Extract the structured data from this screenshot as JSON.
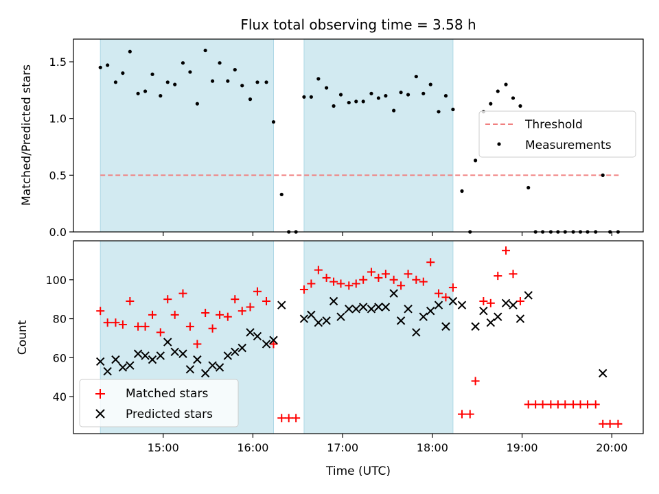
{
  "title": "Flux total observing time = 3.58 h",
  "colors": {
    "threshold": "#f08080",
    "shade": "#add8e6",
    "matched": "#ff0000",
    "predicted": "#000000",
    "measure": "#000000"
  },
  "chart_data": [
    {
      "type": "scatter",
      "ylabel": "Matched/Predicted stars",
      "ylim": [
        0,
        1.7
      ],
      "yticks": [
        "0.0",
        "0.5",
        "1.0",
        "1.5"
      ],
      "xlim": [
        14.0,
        20.35
      ],
      "legend": {
        "placement": "center-right",
        "entries": [
          "Threshold",
          "Measurements"
        ]
      },
      "threshold": {
        "name": "Threshold",
        "value": 0.5,
        "x_start": 14.3,
        "x_end": 20.08
      },
      "shaded_spans": [
        [
          14.3,
          16.23
        ],
        [
          16.57,
          18.23
        ]
      ],
      "series": [
        {
          "name": "Measurements",
          "points": [
            [
              14.3,
              1.45
            ],
            [
              14.38,
              1.47
            ],
            [
              14.47,
              1.32
            ],
            [
              14.55,
              1.4
            ],
            [
              14.63,
              1.59
            ],
            [
              14.72,
              1.22
            ],
            [
              14.8,
              1.24
            ],
            [
              14.88,
              1.39
            ],
            [
              14.97,
              1.2
            ],
            [
              15.05,
              1.32
            ],
            [
              15.13,
              1.3
            ],
            [
              15.22,
              1.49
            ],
            [
              15.3,
              1.41
            ],
            [
              15.38,
              1.13
            ],
            [
              15.47,
              1.6
            ],
            [
              15.55,
              1.33
            ],
            [
              15.63,
              1.49
            ],
            [
              15.72,
              1.33
            ],
            [
              15.8,
              1.43
            ],
            [
              15.88,
              1.29
            ],
            [
              15.97,
              1.17
            ],
            [
              16.05,
              1.32
            ],
            [
              16.15,
              1.32
            ],
            [
              16.23,
              0.97
            ],
            [
              16.32,
              0.33
            ],
            [
              16.4,
              0.0
            ],
            [
              16.48,
              0.0
            ],
            [
              16.57,
              1.19
            ],
            [
              16.65,
              1.19
            ],
            [
              16.73,
              1.35
            ],
            [
              16.82,
              1.27
            ],
            [
              16.9,
              1.11
            ],
            [
              16.98,
              1.21
            ],
            [
              17.07,
              1.14
            ],
            [
              17.15,
              1.15
            ],
            [
              17.23,
              1.15
            ],
            [
              17.32,
              1.22
            ],
            [
              17.4,
              1.18
            ],
            [
              17.48,
              1.2
            ],
            [
              17.57,
              1.07
            ],
            [
              17.65,
              1.23
            ],
            [
              17.73,
              1.21
            ],
            [
              17.82,
              1.37
            ],
            [
              17.9,
              1.22
            ],
            [
              17.98,
              1.3
            ],
            [
              18.07,
              1.06
            ],
            [
              18.15,
              1.2
            ],
            [
              18.23,
              1.08
            ],
            [
              18.33,
              0.36
            ],
            [
              18.42,
              0.0
            ],
            [
              18.48,
              0.63
            ],
            [
              18.57,
              1.06
            ],
            [
              18.65,
              1.13
            ],
            [
              18.73,
              1.24
            ],
            [
              18.82,
              1.3
            ],
            [
              18.9,
              1.18
            ],
            [
              18.98,
              1.11
            ],
            [
              19.07,
              0.39
            ],
            [
              19.15,
              0.0
            ],
            [
              19.23,
              0.0
            ],
            [
              19.32,
              0.0
            ],
            [
              19.4,
              0.0
            ],
            [
              19.48,
              0.0
            ],
            [
              19.57,
              0.0
            ],
            [
              19.65,
              0.0
            ],
            [
              19.73,
              0.0
            ],
            [
              19.82,
              0.0
            ],
            [
              19.9,
              0.5
            ],
            [
              19.98,
              0.0
            ],
            [
              20.07,
              0.0
            ]
          ]
        }
      ]
    },
    {
      "type": "scatter",
      "xlabel": "Time (UTC)",
      "ylabel": "Count",
      "ylim": [
        21,
        120
      ],
      "yticks": [
        "40",
        "60",
        "80",
        "100"
      ],
      "xlim": [
        14.0,
        20.35
      ],
      "xticks": [
        "15:00",
        "16:00",
        "17:00",
        "18:00",
        "19:00",
        "20:00"
      ],
      "legend": {
        "placement": "bottom-left",
        "entries": [
          "Matched stars",
          "Predicted stars"
        ]
      },
      "shaded_spans": [
        [
          14.3,
          16.23
        ],
        [
          16.57,
          18.23
        ]
      ],
      "series": [
        {
          "name": "Matched stars",
          "points": [
            [
              14.3,
              84
            ],
            [
              14.38,
              78
            ],
            [
              14.47,
              78
            ],
            [
              14.55,
              77
            ],
            [
              14.63,
              89
            ],
            [
              14.72,
              76
            ],
            [
              14.8,
              76
            ],
            [
              14.88,
              82
            ],
            [
              14.97,
              73
            ],
            [
              15.05,
              90
            ],
            [
              15.13,
              82
            ],
            [
              15.22,
              93
            ],
            [
              15.3,
              76
            ],
            [
              15.38,
              67
            ],
            [
              15.47,
              83
            ],
            [
              15.55,
              75
            ],
            [
              15.63,
              82
            ],
            [
              15.72,
              81
            ],
            [
              15.8,
              90
            ],
            [
              15.88,
              84
            ],
            [
              15.97,
              86
            ],
            [
              16.05,
              94
            ],
            [
              16.15,
              89
            ],
            [
              16.23,
              67
            ],
            [
              16.32,
              29
            ],
            [
              16.4,
              29
            ],
            [
              16.48,
              29
            ],
            [
              16.57,
              95
            ],
            [
              16.65,
              98
            ],
            [
              16.73,
              105
            ],
            [
              16.82,
              101
            ],
            [
              16.9,
              99
            ],
            [
              16.98,
              98
            ],
            [
              17.07,
              97
            ],
            [
              17.15,
              98
            ],
            [
              17.23,
              100
            ],
            [
              17.32,
              104
            ],
            [
              17.4,
              101
            ],
            [
              17.48,
              103
            ],
            [
              17.57,
              100
            ],
            [
              17.65,
              97
            ],
            [
              17.73,
              103
            ],
            [
              17.82,
              100
            ],
            [
              17.9,
              99
            ],
            [
              17.98,
              109
            ],
            [
              18.07,
              93
            ],
            [
              18.15,
              91
            ],
            [
              18.23,
              96
            ],
            [
              18.33,
              31
            ],
            [
              18.42,
              31
            ],
            [
              18.48,
              48
            ],
            [
              18.57,
              89
            ],
            [
              18.65,
              88
            ],
            [
              18.73,
              102
            ],
            [
              18.82,
              115
            ],
            [
              18.9,
              103
            ],
            [
              18.98,
              89
            ],
            [
              19.07,
              36
            ],
            [
              19.15,
              36
            ],
            [
              19.23,
              36
            ],
            [
              19.32,
              36
            ],
            [
              19.4,
              36
            ],
            [
              19.48,
              36
            ],
            [
              19.57,
              36
            ],
            [
              19.65,
              36
            ],
            [
              19.73,
              36
            ],
            [
              19.82,
              36
            ],
            [
              19.9,
              26
            ],
            [
              19.98,
              26
            ],
            [
              20.07,
              26
            ]
          ]
        },
        {
          "name": "Predicted stars",
          "points": [
            [
              14.3,
              58
            ],
            [
              14.38,
              53
            ],
            [
              14.47,
              59
            ],
            [
              14.55,
              55
            ],
            [
              14.63,
              56
            ],
            [
              14.72,
              62
            ],
            [
              14.8,
              61
            ],
            [
              14.88,
              59
            ],
            [
              14.97,
              61
            ],
            [
              15.05,
              68
            ],
            [
              15.13,
              63
            ],
            [
              15.22,
              62
            ],
            [
              15.3,
              54
            ],
            [
              15.38,
              59
            ],
            [
              15.47,
              52
            ],
            [
              15.55,
              56
            ],
            [
              15.63,
              55
            ],
            [
              15.72,
              61
            ],
            [
              15.8,
              63
            ],
            [
              15.88,
              65
            ],
            [
              15.97,
              73
            ],
            [
              16.05,
              71
            ],
            [
              16.15,
              67
            ],
            [
              16.23,
              69
            ],
            [
              16.32,
              87
            ],
            [
              16.57,
              80
            ],
            [
              16.65,
              82
            ],
            [
              16.73,
              78
            ],
            [
              16.82,
              79
            ],
            [
              16.9,
              89
            ],
            [
              16.98,
              81
            ],
            [
              17.07,
              85
            ],
            [
              17.15,
              85
            ],
            [
              17.23,
              86
            ],
            [
              17.32,
              85
            ],
            [
              17.4,
              86
            ],
            [
              17.48,
              86
            ],
            [
              17.57,
              93
            ],
            [
              17.65,
              79
            ],
            [
              17.73,
              85
            ],
            [
              17.82,
              73
            ],
            [
              17.9,
              81
            ],
            [
              17.98,
              84
            ],
            [
              18.07,
              87
            ],
            [
              18.15,
              76
            ],
            [
              18.23,
              89
            ],
            [
              18.33,
              87
            ],
            [
              18.48,
              76
            ],
            [
              18.57,
              84
            ],
            [
              18.65,
              78
            ],
            [
              18.73,
              81
            ],
            [
              18.82,
              88
            ],
            [
              18.9,
              87
            ],
            [
              18.98,
              80
            ],
            [
              19.07,
              92
            ],
            [
              19.9,
              52
            ]
          ]
        }
      ]
    }
  ]
}
